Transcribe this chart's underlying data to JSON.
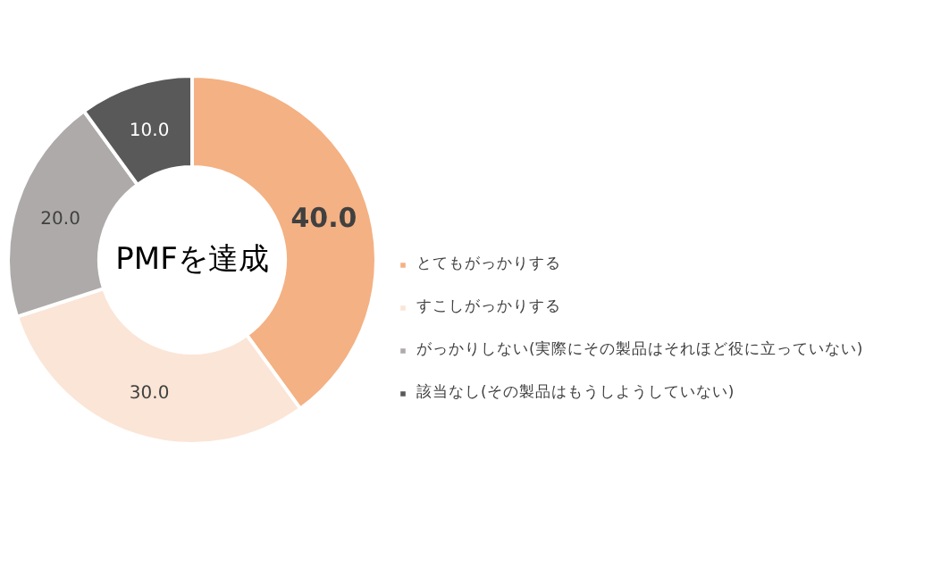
{
  "chart_data": {
    "type": "donut",
    "annotations": [
      "PMFを達成"
    ],
    "categories": [
      "とてもがっかりする",
      "すこしがっかりする",
      "がっかりしない(実際にその製品はそれほど役に立っていない)",
      "該当なし(その製品はもうしようしていない)"
    ],
    "values": [
      40,
      30,
      20,
      10
    ],
    "colors": [
      "#f4b183",
      "#fbe5d6",
      "#aeaaaa",
      "#595959"
    ],
    "value_labels": [
      "40.0",
      "30.0",
      "20.0",
      "10.0"
    ],
    "legend": "right"
  }
}
